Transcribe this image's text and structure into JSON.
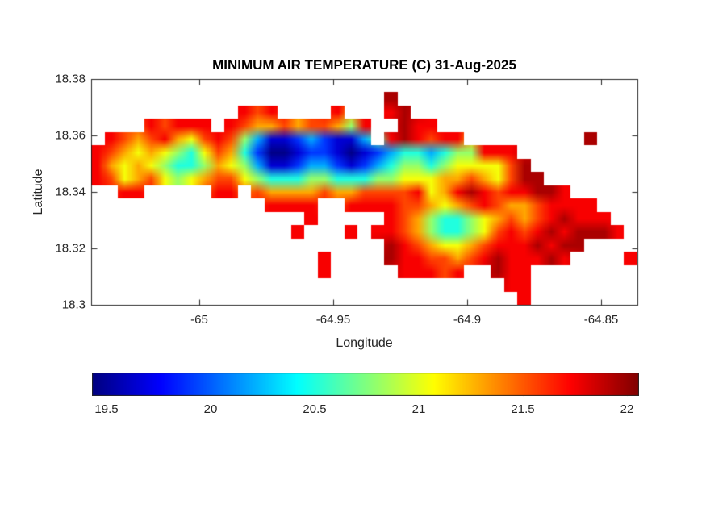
{
  "figure": {
    "title": "MINIMUM AIR TEMPERATURE (C) 31-Aug-2025",
    "background": "#ffffff",
    "x_axis": {
      "label": "Longitude",
      "tick_labels": [
        "-65",
        "-64.95",
        "-64.9",
        "-64.85"
      ]
    },
    "y_axis": {
      "label": "Latitude",
      "tick_labels": [
        "18.38",
        "18.36",
        "18.34",
        "18.32",
        "18.3"
      ]
    },
    "colorbar": {
      "tick_labels": [
        "19.5",
        "20",
        "20.5",
        "21",
        "21.5",
        "22"
      ]
    }
  },
  "chart_data": {
    "type": "heatmap",
    "title": "MINIMUM AIR TEMPERATURE (C) 31-Aug-2025",
    "xlabel": "Longitude",
    "ylabel": "Latitude",
    "units": "C",
    "xlim": [
      -65.0404,
      -64.8365
    ],
    "ylim": [
      18.3,
      18.38
    ],
    "x_ticks": [
      -65,
      -64.95,
      -64.9,
      -64.85
    ],
    "y_ticks": [
      18.38,
      18.36,
      18.34,
      18.32,
      18.3
    ],
    "colormap": "jet",
    "color_range": [
      19.43,
      22.06
    ],
    "colorbar_ticks": [
      19.5,
      20,
      20.5,
      21,
      21.5,
      22
    ],
    "grid": {
      "cols": 41,
      "rows": 17,
      "ocean_code": ".",
      "code_values": {
        "0": 19.45,
        "1": 19.65,
        "2": 19.9,
        "3": 20.2,
        "4": 20.5,
        "5": 20.8,
        "6": 21.05,
        "7": 21.3,
        "8": 21.55,
        "9": 21.75,
        "a": 21.95,
        "b": 22.05
      },
      "rows_data": [
        ".........................................",
        "......................a..................",
        "...........989....9...9a.................",
        "....98999.98778788759..a99...............",
        ".98789768985311232113.9a9899.........a...",
        "98767654687420012210123443455999.........",
        "97676544576531123321234554566668a........",
        "98678656788654445544455666778768aa.......",
        "..99.....99.8777787788889679a9899aa9.....",
        ".............9999..9999887678987789999...",
        "................9.....9875445678789a999..",
        "...............9...9.9987544568989a9aaa9.",
        "......................a9876678999a9aa....",
        ".................9....a9988789a999a9....9",
        ".................9.....99989..a99........",
        "...............................99........",
        "................................9........"
      ]
    }
  }
}
